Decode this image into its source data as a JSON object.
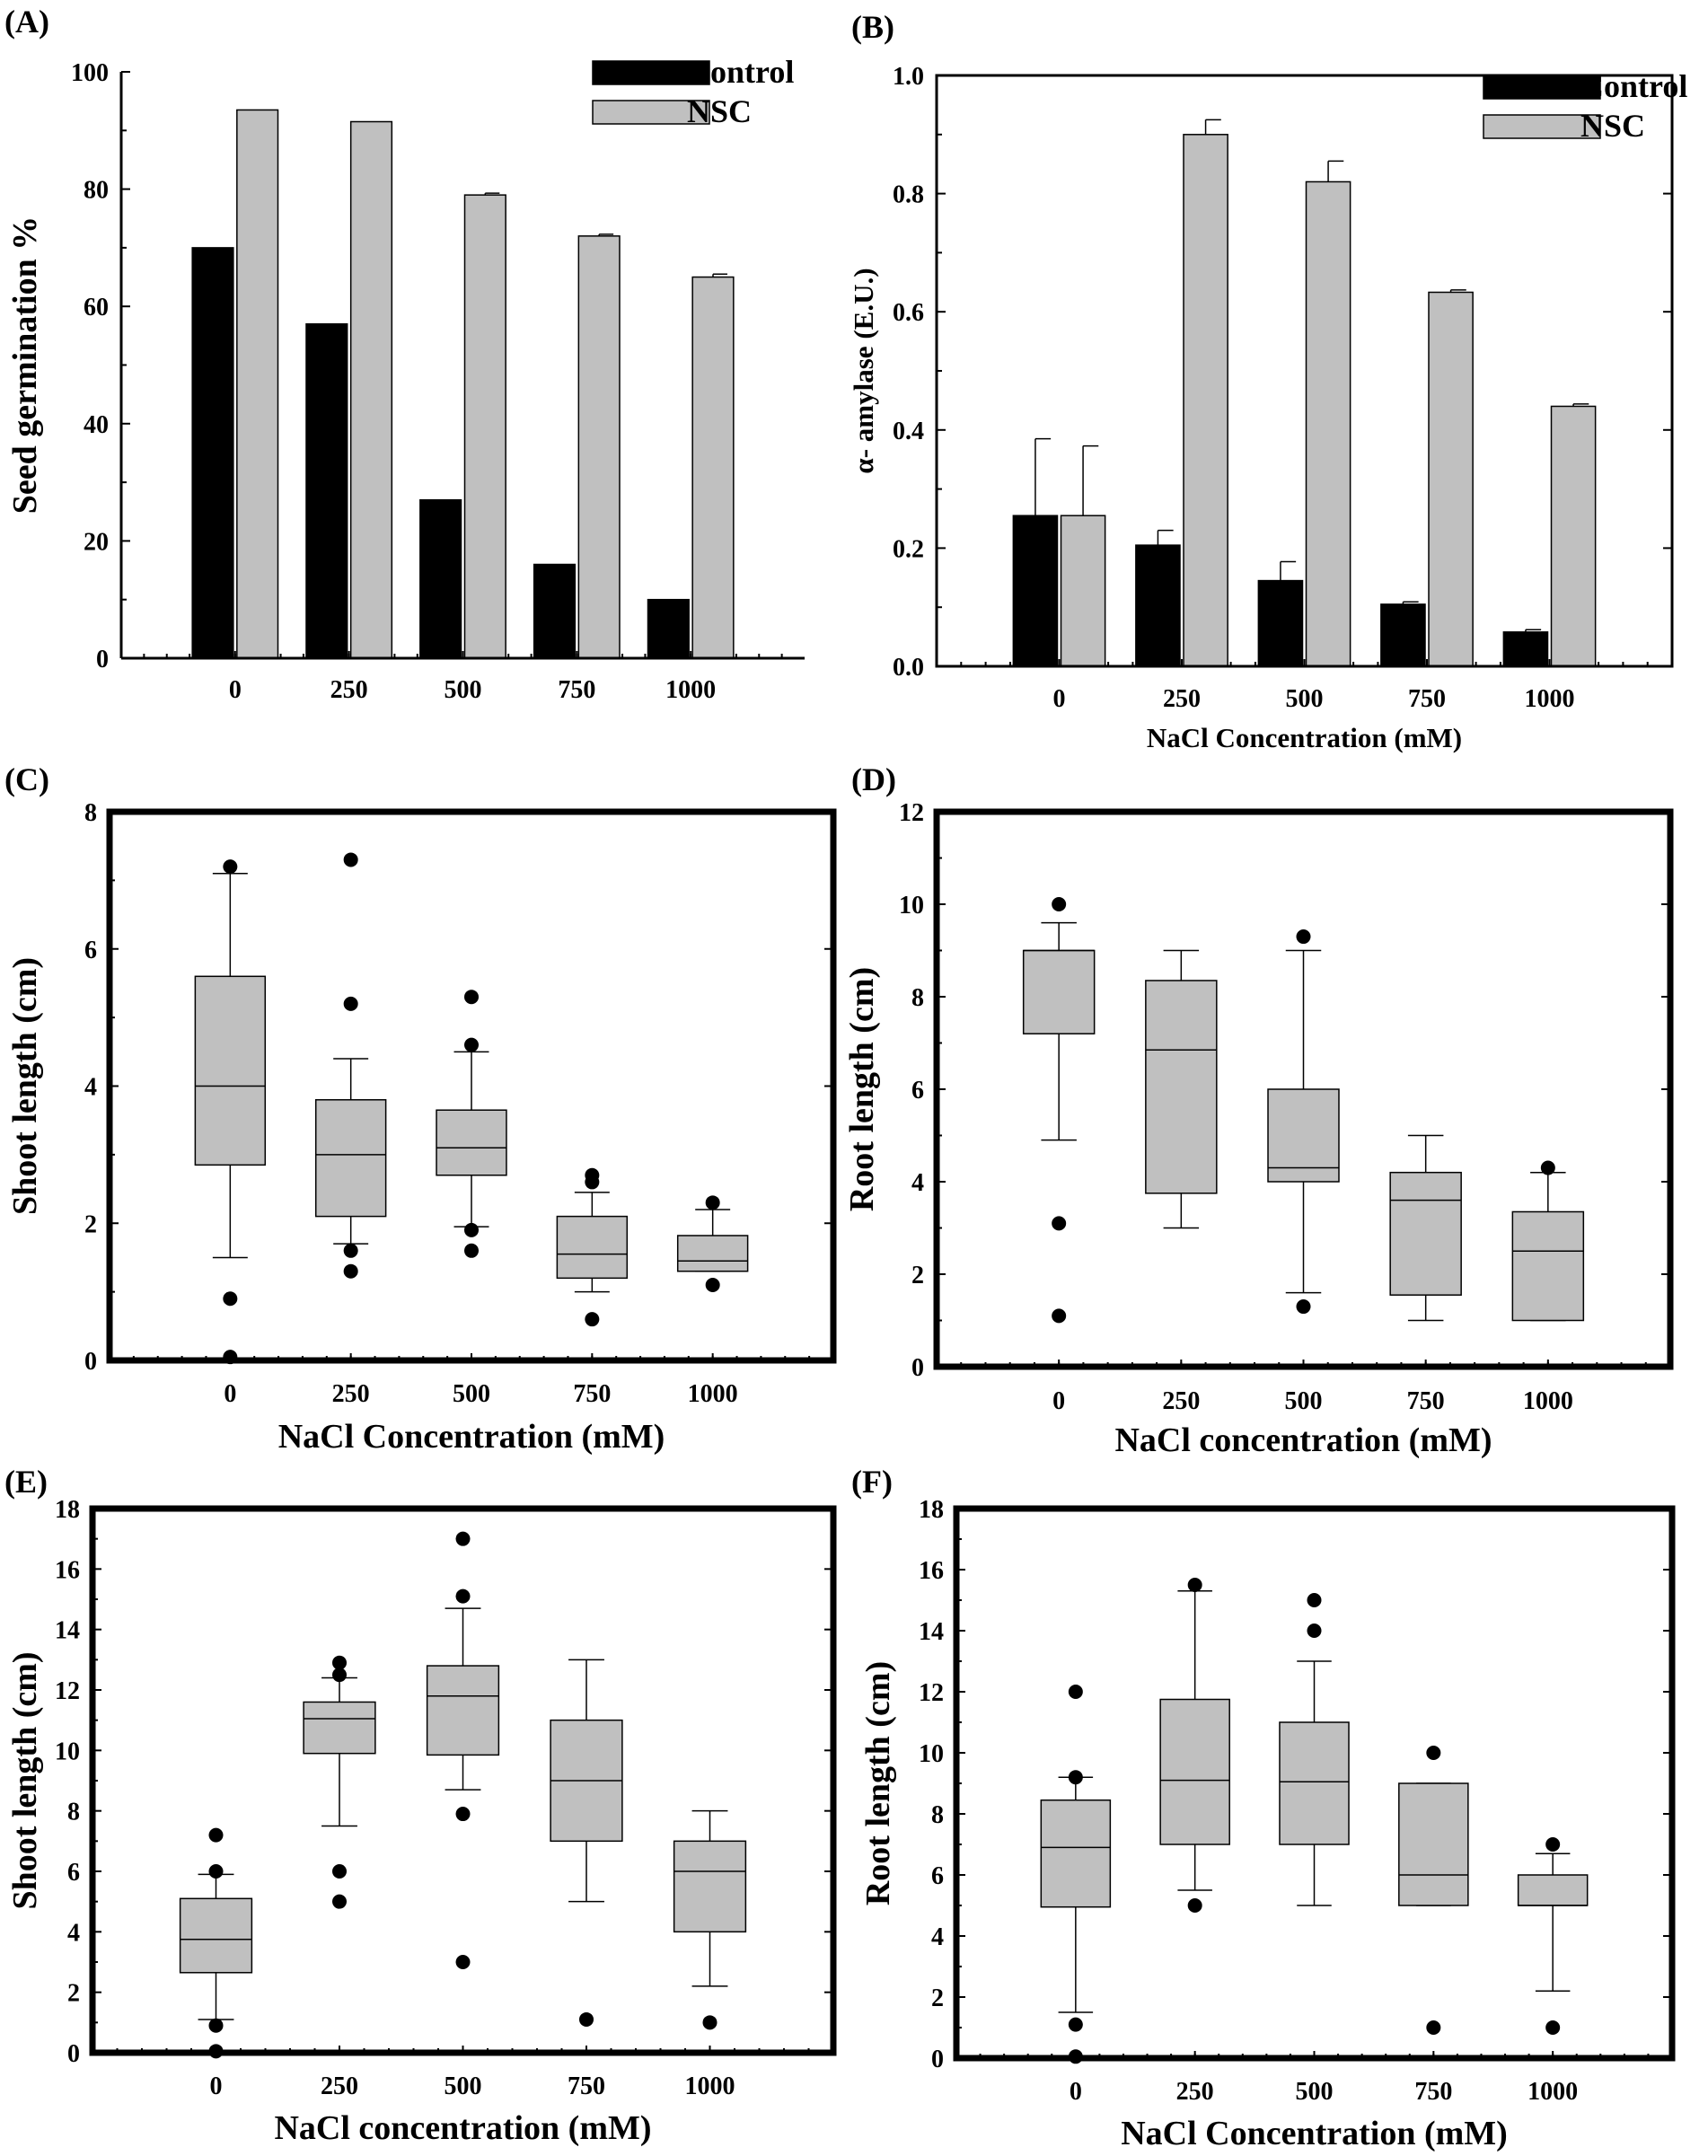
{
  "figure": {
    "colors": {
      "control": "#000000",
      "nsc": "#c0c0c0",
      "box_fill": "#c0c0c0",
      "axis": "#000000"
    }
  },
  "chart_data": [
    {
      "id": "A",
      "panel_label": "(A)",
      "type": "bar",
      "categories": [
        "0",
        "250",
        "500",
        "750",
        "1000"
      ],
      "series": [
        {
          "name": "Control",
          "values": [
            70,
            57,
            27,
            16,
            10
          ],
          "errors": [
            0,
            0,
            0,
            0,
            0
          ]
        },
        {
          "name": "NSC",
          "values": [
            93.5,
            91.5,
            79,
            72,
            65
          ],
          "errors": [
            0,
            0,
            0.3,
            0.3,
            0.5
          ]
        }
      ],
      "title": "",
      "xlabel": "",
      "ylabel": "Seed germination %",
      "ylim": [
        0,
        100
      ],
      "yticks": [
        "0",
        "20",
        "40",
        "60",
        "80",
        "100"
      ],
      "legend": "top-right"
    },
    {
      "id": "B",
      "panel_label": "(B)",
      "type": "bar",
      "categories": [
        "0",
        "250",
        "500",
        "750",
        "1000"
      ],
      "series": [
        {
          "name": "Control",
          "values": [
            0.255,
            0.205,
            0.145,
            0.105,
            0.058
          ],
          "errors": [
            0.13,
            0.025,
            0.032,
            0.004,
            0.004
          ]
        },
        {
          "name": "NSC",
          "values": [
            0.255,
            0.9,
            0.82,
            0.633,
            0.44
          ],
          "errors": [
            0.118,
            0.025,
            0.035,
            0.004,
            0.004
          ]
        }
      ],
      "title": "",
      "xlabel": "NaCl Concentration (mM)",
      "ylabel": "α- amylase (E.U.)",
      "ylim": [
        0,
        1
      ],
      "yticks": [
        "0.0",
        "0.2",
        "0.4",
        "0.6",
        "0.8",
        "1.0"
      ],
      "legend": "top-right"
    },
    {
      "id": "C",
      "panel_label": "(C)",
      "type": "box",
      "categories": [
        "0",
        "250",
        "500",
        "750",
        "1000"
      ],
      "boxes": [
        {
          "whisker_low": 1.5,
          "q1": 2.85,
          "median": 4.0,
          "q3": 5.6,
          "whisker_high": 7.1,
          "outliers": [
            0.9,
            0.05,
            7.2
          ]
        },
        {
          "whisker_low": 1.7,
          "q1": 2.1,
          "median": 3.0,
          "q3": 3.8,
          "whisker_high": 4.4,
          "outliers": [
            1.3,
            1.6,
            5.2,
            7.3
          ]
        },
        {
          "whisker_low": 1.95,
          "q1": 2.7,
          "median": 3.1,
          "q3": 3.65,
          "whisker_high": 4.5,
          "outliers": [
            1.6,
            1.9,
            4.6,
            5.3
          ]
        },
        {
          "whisker_low": 1.0,
          "q1": 1.2,
          "median": 1.55,
          "q3": 2.1,
          "whisker_high": 2.45,
          "outliers": [
            0.6,
            2.6,
            2.7
          ]
        },
        {
          "whisker_low": 1.3,
          "q1": 1.3,
          "median": 1.45,
          "q3": 1.82,
          "whisker_high": 2.2,
          "outliers": [
            1.1,
            2.3
          ]
        }
      ],
      "title": "",
      "xlabel": "NaCl Concentration (mM)",
      "ylabel": "Shoot length (cm)",
      "ylim": [
        0,
        8
      ],
      "yticks": [
        "0",
        "2",
        "4",
        "6",
        "8"
      ]
    },
    {
      "id": "D",
      "panel_label": "(D)",
      "type": "box",
      "categories": [
        "0",
        "250",
        "500",
        "750",
        "1000"
      ],
      "boxes": [
        {
          "whisker_low": 4.9,
          "q1": 7.2,
          "median": 9.0,
          "q3": 9.0,
          "whisker_high": 9.6,
          "outliers": [
            1.1,
            3.1,
            10.0
          ]
        },
        {
          "whisker_low": 3.0,
          "q1": 3.75,
          "median": 6.85,
          "q3": 8.35,
          "whisker_high": 9.0,
          "outliers": []
        },
        {
          "whisker_low": 1.6,
          "q1": 4.0,
          "median": 4.3,
          "q3": 6.0,
          "whisker_high": 9.0,
          "outliers": [
            1.3,
            9.3
          ]
        },
        {
          "whisker_low": 1.0,
          "q1": 1.55,
          "median": 3.6,
          "q3": 4.2,
          "whisker_high": 5.0,
          "outliers": []
        },
        {
          "whisker_low": 1.0,
          "q1": 1.0,
          "median": 2.5,
          "q3": 3.35,
          "whisker_high": 4.2,
          "outliers": [
            4.3
          ]
        }
      ],
      "title": "",
      "xlabel": "NaCl concentration (mM)",
      "ylabel": "Root length (cm)",
      "ylim": [
        0,
        12
      ],
      "yticks": [
        "0",
        "2",
        "4",
        "6",
        "8",
        "10",
        "12"
      ]
    },
    {
      "id": "E",
      "panel_label": "(E)",
      "type": "box",
      "categories": [
        "0",
        "250",
        "500",
        "750",
        "1000"
      ],
      "boxes": [
        {
          "whisker_low": 1.1,
          "q1": 2.65,
          "median": 3.75,
          "q3": 5.1,
          "whisker_high": 5.9,
          "outliers": [
            0.9,
            0.05,
            6.0,
            7.2
          ]
        },
        {
          "whisker_low": 7.5,
          "q1": 9.9,
          "median": 11.05,
          "q3": 11.6,
          "whisker_high": 12.4,
          "outliers": [
            5.0,
            6.0,
            12.5,
            12.9
          ]
        },
        {
          "whisker_low": 8.7,
          "q1": 9.85,
          "median": 11.8,
          "q3": 12.8,
          "whisker_high": 14.7,
          "outliers": [
            3.0,
            7.9,
            15.1,
            17.0
          ]
        },
        {
          "whisker_low": 5.0,
          "q1": 7.0,
          "median": 9.0,
          "q3": 11.0,
          "whisker_high": 13.0,
          "outliers": [
            1.1
          ]
        },
        {
          "whisker_low": 2.2,
          "q1": 4.0,
          "median": 6.0,
          "q3": 7.0,
          "whisker_high": 8.0,
          "outliers": [
            1.0
          ]
        }
      ],
      "title": "",
      "xlabel": "NaCl concentration (mM)",
      "ylabel": "Shoot length (cm)",
      "ylim": [
        0,
        18
      ],
      "yticks": [
        "0",
        "2",
        "4",
        "6",
        "8",
        "10",
        "12",
        "14",
        "16",
        "18"
      ]
    },
    {
      "id": "F",
      "panel_label": "(F)",
      "type": "box",
      "categories": [
        "0",
        "250",
        "500",
        "750",
        "1000"
      ],
      "boxes": [
        {
          "whisker_low": 1.5,
          "q1": 4.95,
          "median": 6.9,
          "q3": 8.45,
          "whisker_high": 9.2,
          "outliers": [
            0.05,
            1.1,
            9.2,
            12.0
          ]
        },
        {
          "whisker_low": 5.5,
          "q1": 7.0,
          "median": 9.1,
          "q3": 11.75,
          "whisker_high": 15.3,
          "outliers": [
            5.0,
            15.5
          ]
        },
        {
          "whisker_low": 5.0,
          "q1": 7.0,
          "median": 9.05,
          "q3": 11.0,
          "whisker_high": 13.0,
          "outliers": [
            14.0,
            15.0
          ]
        },
        {
          "whisker_low": 5.0,
          "q1": 5.0,
          "median": 6.0,
          "q3": 9.0,
          "whisker_high": 9.0,
          "outliers": [
            1.0,
            10.0
          ]
        },
        {
          "whisker_low": 2.2,
          "q1": 5.0,
          "median": 5.0,
          "q3": 6.0,
          "whisker_high": 6.7,
          "outliers": [
            1.0,
            7.0
          ]
        }
      ],
      "title": "",
      "xlabel": "NaCl Concentration (mM)",
      "ylabel": "Root length (cm)",
      "ylim": [
        0,
        18
      ],
      "yticks": [
        "0",
        "2",
        "4",
        "6",
        "8",
        "10",
        "12",
        "14",
        "16",
        "18"
      ]
    }
  ]
}
